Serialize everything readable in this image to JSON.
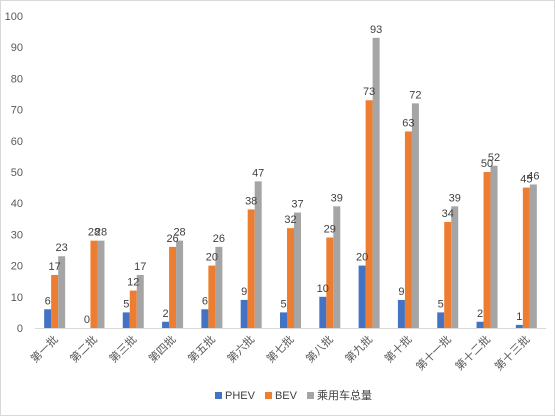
{
  "chart_data": {
    "type": "bar",
    "categories": [
      "第一批",
      "第二批",
      "第三批",
      "第四批",
      "第五批",
      "第六批",
      "第七批",
      "第八批",
      "第九批",
      "第十批",
      "第十一批",
      "第十二批",
      "第十三批"
    ],
    "series": [
      {
        "name": "PHEV",
        "color": "#4472C4",
        "values": [
          6,
          0,
          5,
          2,
          6,
          9,
          5,
          10,
          20,
          9,
          5,
          2,
          1
        ]
      },
      {
        "name": "BEV",
        "color": "#ED7D31",
        "values": [
          17,
          28,
          12,
          26,
          20,
          38,
          32,
          29,
          73,
          63,
          34,
          50,
          45
        ]
      },
      {
        "name": "乘用车总量",
        "color": "#A5A5A5",
        "values": [
          23,
          28,
          17,
          28,
          26,
          47,
          37,
          39,
          93,
          72,
          39,
          52,
          46
        ]
      }
    ],
    "ylim": [
      0,
      100
    ],
    "yticks": [
      0,
      10,
      20,
      30,
      40,
      50,
      60,
      70,
      80,
      90,
      100
    ],
    "grid": false,
    "legend": "bottom",
    "title": "",
    "xlabel": "",
    "ylabel": ""
  }
}
